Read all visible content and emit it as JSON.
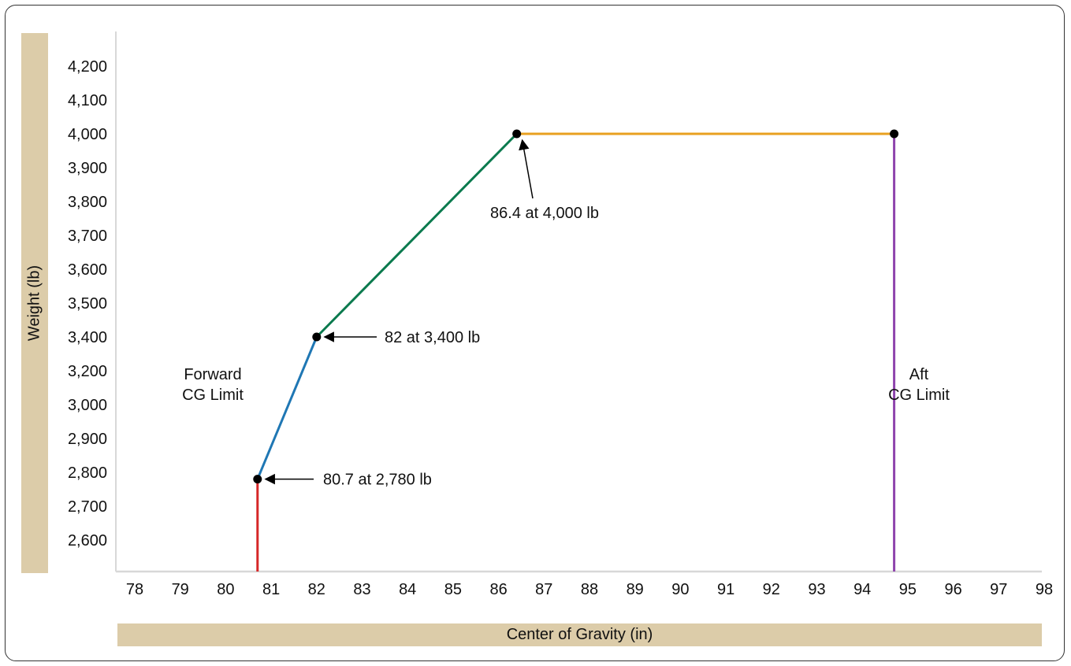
{
  "chart_data": {
    "type": "line",
    "xlabel": "Center of Gravity (in)",
    "ylabel": "Weight (lb)",
    "xlim": [
      78,
      98
    ],
    "x_ticks": [
      "78",
      "79",
      "80",
      "81",
      "82",
      "83",
      "84",
      "85",
      "86",
      "87",
      "88",
      "89",
      "90",
      "91",
      "92",
      "93",
      "94",
      "95",
      "96",
      "97",
      "98"
    ],
    "y_ticks": [
      "2,600",
      "2,700",
      "2,800",
      "2,900",
      "3,000",
      "3,200",
      "3,400",
      "3,500",
      "3,600",
      "3,700",
      "3,800",
      "3,900",
      "4,000",
      "4,100",
      "4,200"
    ],
    "segments": [
      {
        "color": "#d62728",
        "points": [
          [
            80.7,
            "floor"
          ],
          [
            80.7,
            2780
          ]
        ]
      },
      {
        "color": "#1f77b4",
        "points": [
          [
            80.7,
            2780
          ],
          [
            82,
            3400
          ]
        ]
      },
      {
        "color": "#0b7a4e",
        "points": [
          [
            82,
            3400
          ],
          [
            86.4,
            4000
          ]
        ]
      },
      {
        "color": "#e8a020",
        "points": [
          [
            86.4,
            4000
          ],
          [
            94.7,
            4000
          ]
        ]
      },
      {
        "color": "#8e44ad",
        "points": [
          [
            94.7,
            4000
          ],
          [
            94.7,
            "floor"
          ]
        ]
      }
    ],
    "points": [
      {
        "x": 80.7,
        "y": 2780,
        "label": "80.7 at 2,780 lb"
      },
      {
        "x": 82,
        "y": 3400,
        "label": "82 at 3,400 lb"
      },
      {
        "x": 86.4,
        "y": 4000,
        "label": "86.4 at 4,000 lb"
      },
      {
        "x": 94.7,
        "y": 4000,
        "label": ""
      }
    ],
    "annotations": [
      {
        "lines": [
          "Forward",
          "CG Limit"
        ]
      },
      {
        "lines": [
          "Aft",
          "CG Limit"
        ]
      }
    ]
  }
}
